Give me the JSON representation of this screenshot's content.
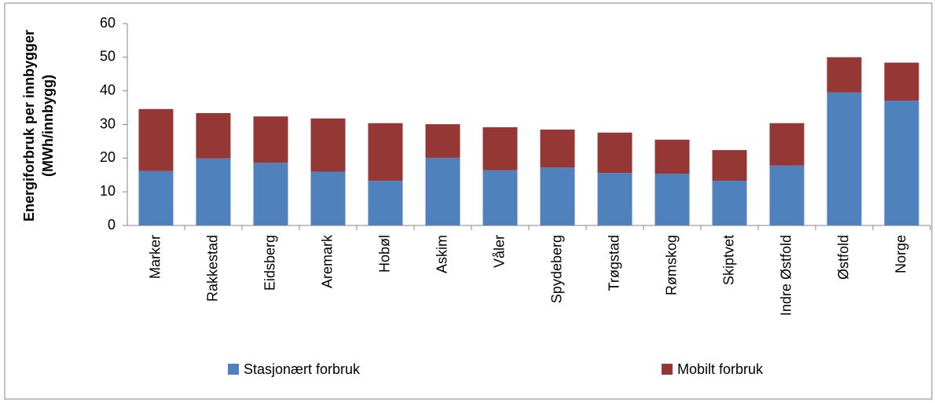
{
  "chart_data": {
    "type": "stacked_bar",
    "ylabel": [
      "Energiforbruk per innbygger",
      "(MWh/innbygg)"
    ],
    "categories": [
      "Marker",
      "Rakkestad",
      "Eidsberg",
      "Aremark",
      "Hobøl",
      "Askim",
      "Våler",
      "Spydeberg",
      "Trøgstad",
      "Rømskog",
      "Skiptvet",
      "Indre Østfold",
      "Østfold",
      "Norge"
    ],
    "series": [
      {
        "name": "Stasjonært forbruk",
        "color": "#4f81bd",
        "values": [
          16.2,
          19.9,
          18.6,
          16,
          13.3,
          20.1,
          16.4,
          17.2,
          15.6,
          15.4,
          13.3,
          17.8,
          39.5,
          37.1
        ]
      },
      {
        "name": "Mobilt forbruk",
        "color": "#953735",
        "values": [
          18.4,
          13.5,
          13.8,
          15.8,
          17.1,
          10,
          12.8,
          11.3,
          12,
          10.1,
          9.1,
          12.6,
          10.5,
          11.3
        ]
      }
    ],
    "ylim": [
      0,
      60
    ],
    "yticks": [
      0,
      10,
      20,
      30,
      40,
      50,
      60
    ],
    "legend": "bottom"
  }
}
